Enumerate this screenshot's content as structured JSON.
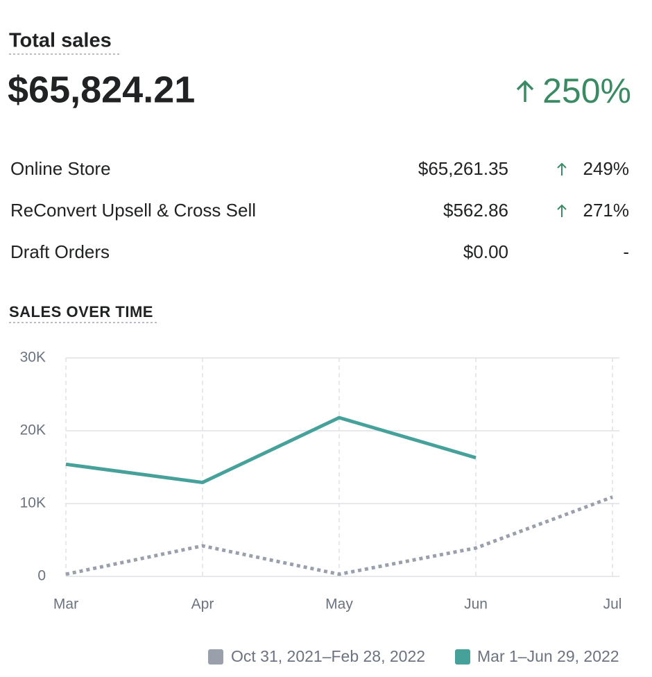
{
  "header": {
    "title": "Total sales",
    "total": "$65,824.21",
    "change": "250%"
  },
  "breakdown": {
    "rows": [
      [
        "Online Store",
        "$65,261.35",
        "249%"
      ],
      [
        "ReConvert Upsell & Cross Sell",
        "$562.86",
        "271%"
      ],
      [
        "Draft Orders",
        "$0.00",
        "-"
      ]
    ]
  },
  "chart_data": {
    "type": "line",
    "title": "SALES OVER TIME",
    "categories": [
      "Mar",
      "Apr",
      "May",
      "Jun",
      "Jul"
    ],
    "series": [
      {
        "name": "Oct 31, 2021–Feb 28, 2022",
        "color": "#9aa0ab",
        "values": [
          300,
          4200,
          300,
          3900,
          10900
        ]
      },
      {
        "name": "Mar 1–Jun 29, 2022",
        "color": "#47a19b",
        "values": [
          15400,
          12900,
          21800,
          16300,
          null
        ]
      }
    ],
    "ylim": [
      0,
      30000
    ],
    "yticks": [
      0,
      {
        "value": 10000,
        "label": "10K"
      },
      {
        "value": 20000,
        "label": "20K"
      },
      {
        "value": 30000,
        "label": "30K"
      }
    ],
    "grid": true
  }
}
